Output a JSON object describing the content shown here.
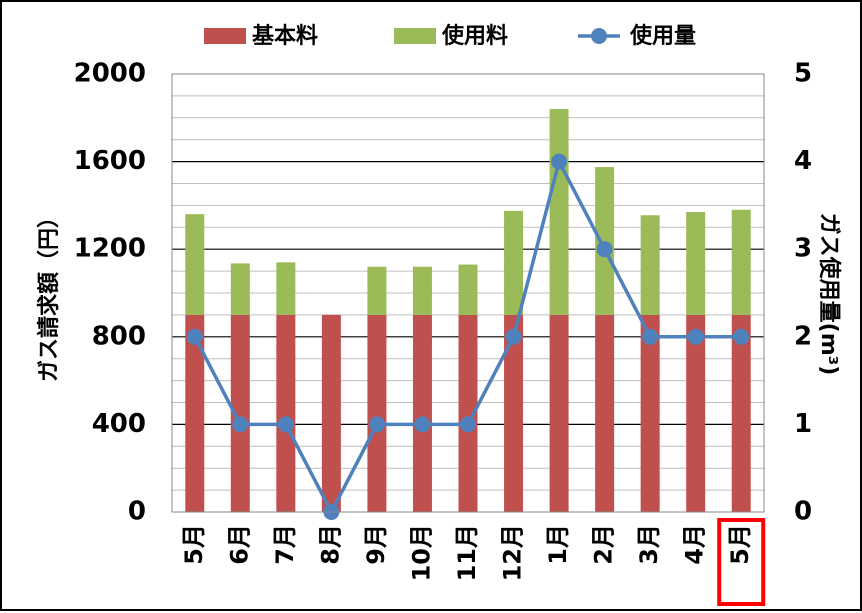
{
  "chart_data": {
    "type": "bar",
    "stacked": true,
    "categories": [
      "5月",
      "6月",
      "7月",
      "8月",
      "9月",
      "10月",
      "11月",
      "12月",
      "1月",
      "2月",
      "3月",
      "4月",
      "5月"
    ],
    "highlighted_category_index": 12,
    "series": [
      {
        "name": "基本料",
        "type": "bar",
        "axis": "left",
        "color": "#c0504d",
        "values": [
          900,
          900,
          900,
          900,
          900,
          900,
          900,
          900,
          900,
          900,
          900,
          900,
          900
        ]
      },
      {
        "name": "使用料",
        "type": "bar",
        "axis": "left",
        "color": "#9bbb59",
        "values": [
          460,
          235,
          240,
          0,
          220,
          220,
          230,
          475,
          940,
          675,
          455,
          470,
          480
        ]
      },
      {
        "name": "使用量",
        "type": "line",
        "axis": "right",
        "color": "#4f81bd",
        "marker": "circle",
        "values": [
          2,
          1,
          1,
          0,
          1,
          1,
          1,
          2,
          4,
          3,
          2,
          2,
          2
        ]
      }
    ],
    "ylabel": "ガス請求額（円）",
    "y2label": "ガス使用量(m³)",
    "ylim": [
      0,
      2000
    ],
    "yticks": [
      0,
      400,
      800,
      1200,
      1600,
      2000
    ],
    "y2lim": [
      0,
      5
    ],
    "y2ticks": [
      0,
      1,
      2,
      3,
      4,
      5
    ],
    "grid": true,
    "highlight_color": "#ff0000",
    "legend_position": "top"
  }
}
